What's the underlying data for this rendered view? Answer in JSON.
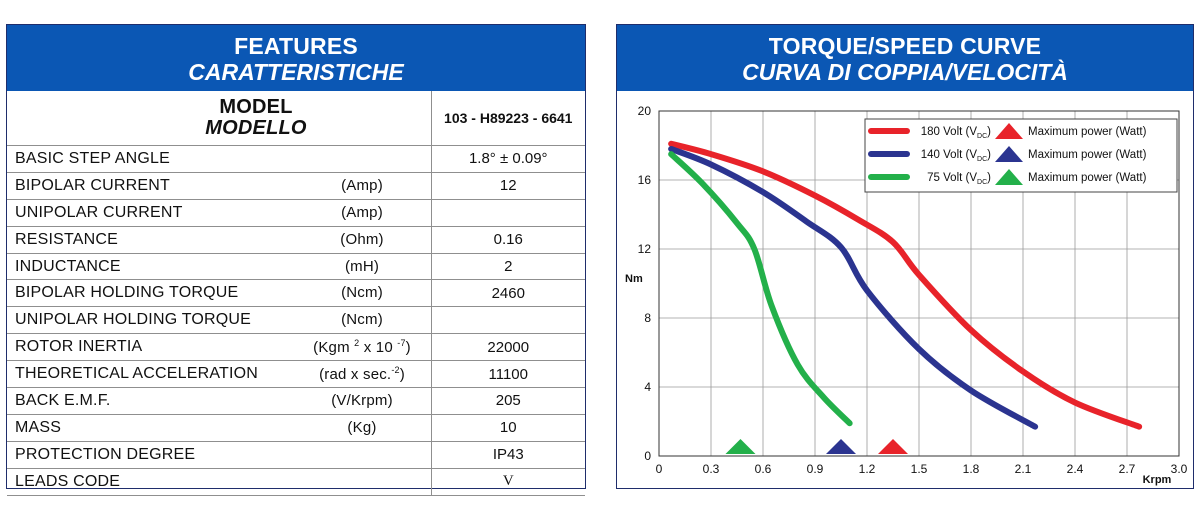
{
  "features": {
    "title_en": "FEATURES",
    "title_it": "CARATTERISTICHE",
    "model_label_en": "MODEL",
    "model_label_it": "MODELLO",
    "model_code": "103 - H89223 - 6641",
    "rows": [
      {
        "name": "BASIC STEP ANGLE",
        "unit": "",
        "value": "1.8°  ± 0.09°"
      },
      {
        "name": "BIPOLAR CURRENT",
        "unit": "(Amp)",
        "value": "12"
      },
      {
        "name": "UNIPOLAR CURRENT",
        "unit": "(Amp)",
        "value": ""
      },
      {
        "name": "RESISTANCE",
        "unit": "(Ohm)",
        "value": "0.16"
      },
      {
        "name": "INDUCTANCE",
        "unit": "(mH)",
        "value": "2"
      },
      {
        "name": "BIPOLAR HOLDING TORQUE",
        "unit": "(Ncm)",
        "value": "2460"
      },
      {
        "name": "UNIPOLAR HOLDING TORQUE",
        "unit": "(Ncm)",
        "value": ""
      },
      {
        "name": "ROTOR INERTIA",
        "unit": "(Kgm 2 x 10 -7)",
        "value": "22000"
      },
      {
        "name": "THEORETICAL ACCELERATION",
        "unit": "(rad x sec.-2)",
        "value": "11100"
      },
      {
        "name": "BACK E.M.F.",
        "unit": "(V/Krpm)",
        "value": "205"
      },
      {
        "name": "MASS",
        "unit": "(Kg)",
        "value": "10"
      },
      {
        "name": "PROTECTION DEGREE",
        "unit": "",
        "value": "IP43"
      },
      {
        "name": "LEADS CODE",
        "unit": "",
        "value": "V"
      }
    ]
  },
  "chart_header": {
    "title_en": "TORQUE/SPEED CURVE",
    "title_it": "CURVA DI COPPIA/VELOCITÀ"
  },
  "chart_data": {
    "type": "line",
    "ylabel": "Nm",
    "xlabel": "Krpm",
    "xlim": [
      0,
      3.0
    ],
    "ylim": [
      0,
      20
    ],
    "xticks": [
      "0",
      "0.3",
      "0.6",
      "0.9",
      "1.2",
      "1.5",
      "1.8",
      "2.1",
      "2.4",
      "2.7",
      "3.0"
    ],
    "yticks": [
      "0",
      "4",
      "8",
      "12",
      "16",
      "20"
    ],
    "grid": true,
    "legend_position": "top-right",
    "marker_legend_label": "Maximum power (Watt)",
    "series": [
      {
        "name": "180 Volt (VDC)",
        "volt_label": "180 Volt (V",
        "sub_label": "DC",
        "color": "#e8232a",
        "x": [
          0.07,
          0.3,
          0.6,
          0.9,
          1.15,
          1.35,
          1.5,
          1.8,
          2.1,
          2.4,
          2.77
        ],
        "y": [
          18.1,
          17.5,
          16.5,
          15.1,
          13.7,
          12.4,
          10.5,
          7.3,
          4.9,
          3.1,
          1.7
        ],
        "max_power_x": 1.35
      },
      {
        "name": "140 Volt (VDC)",
        "volt_label": "140 Volt (V",
        "sub_label": "DC",
        "color": "#2b3490",
        "x": [
          0.07,
          0.3,
          0.6,
          0.85,
          1.05,
          1.2,
          1.5,
          1.8,
          2.17
        ],
        "y": [
          17.8,
          16.9,
          15.3,
          13.6,
          12.1,
          9.6,
          6.2,
          3.8,
          1.7
        ],
        "max_power_x": 1.05
      },
      {
        "name": "75 Volt (VDC)",
        "volt_label": "75 Volt (V",
        "sub_label": "DC",
        "color": "#23b04a",
        "x": [
          0.07,
          0.25,
          0.45,
          0.55,
          0.65,
          0.8,
          0.95,
          1.1
        ],
        "y": [
          17.5,
          15.8,
          13.5,
          12.0,
          8.7,
          5.3,
          3.4,
          1.9
        ],
        "max_power_x": 0.47
      }
    ]
  }
}
